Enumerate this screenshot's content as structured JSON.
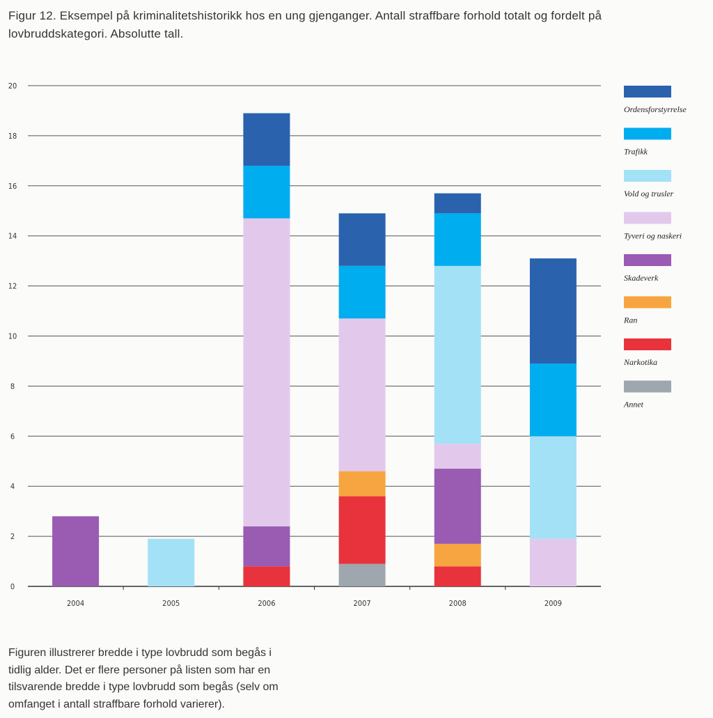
{
  "caption": {
    "line1": "Figur 12. Eksempel på kriminalitetshistorikk hos en ung gjenganger. Antall straffbare forhold totalt og fordelt på",
    "line2": "lovbruddskategori. Absolutte tall."
  },
  "footnote": {
    "line1": "Figuren illustrerer bredde i type lovbrudd som begås i",
    "line2": "tidlig alder. Det er flere personer på listen som har en",
    "line3": "tilsvarende bredde i type lovbrudd som begås (selv om",
    "line4": "omfanget i antall straffbare forhold varierer)."
  },
  "chart_data": {
    "type": "stacked-bar",
    "title": "Eksempel på kriminalitetshistorikk hos en ung gjenganger",
    "xlabel": "",
    "ylabel": "",
    "ylim": [
      0,
      20
    ],
    "yticks": [
      0,
      2,
      4,
      6,
      8,
      10,
      12,
      14,
      16,
      18,
      20
    ],
    "grid": true,
    "legend_position": "right",
    "categories": [
      "2004",
      "2005",
      "2006",
      "2007",
      "2008",
      "2009"
    ],
    "series": [
      {
        "name": "Annet",
        "color": "#9ea7ad",
        "values": [
          0,
          0,
          0,
          0.9,
          0,
          0
        ]
      },
      {
        "name": "Narkotika",
        "color": "#e8333c",
        "values": [
          0,
          0,
          0.8,
          2.7,
          0.8,
          0
        ]
      },
      {
        "name": "Ran",
        "color": "#f7a540",
        "values": [
          0,
          0,
          0,
          1,
          0.9,
          0
        ]
      },
      {
        "name": "Skadeverk",
        "color": "#9a5bb3",
        "values": [
          2.8,
          0,
          1.6,
          0,
          3,
          0
        ]
      },
      {
        "name": "Tyveri og naskeri",
        "color": "#e2c9ec",
        "values": [
          0,
          0,
          12.3,
          6.1,
          1,
          1.9
        ]
      },
      {
        "name": "Vold og trusler",
        "color": "#a3e1f6",
        "values": [
          0,
          1.9,
          0,
          0,
          7.1,
          4.1
        ]
      },
      {
        "name": "Trafikk",
        "color": "#00adef",
        "values": [
          0,
          0,
          2.1,
          2.1,
          2.1,
          2.9
        ]
      },
      {
        "name": "Ordensforstyrrelse",
        "color": "#2a62ae",
        "values": [
          0,
          0,
          2.1,
          2.1,
          0.8,
          4.2
        ]
      }
    ]
  }
}
